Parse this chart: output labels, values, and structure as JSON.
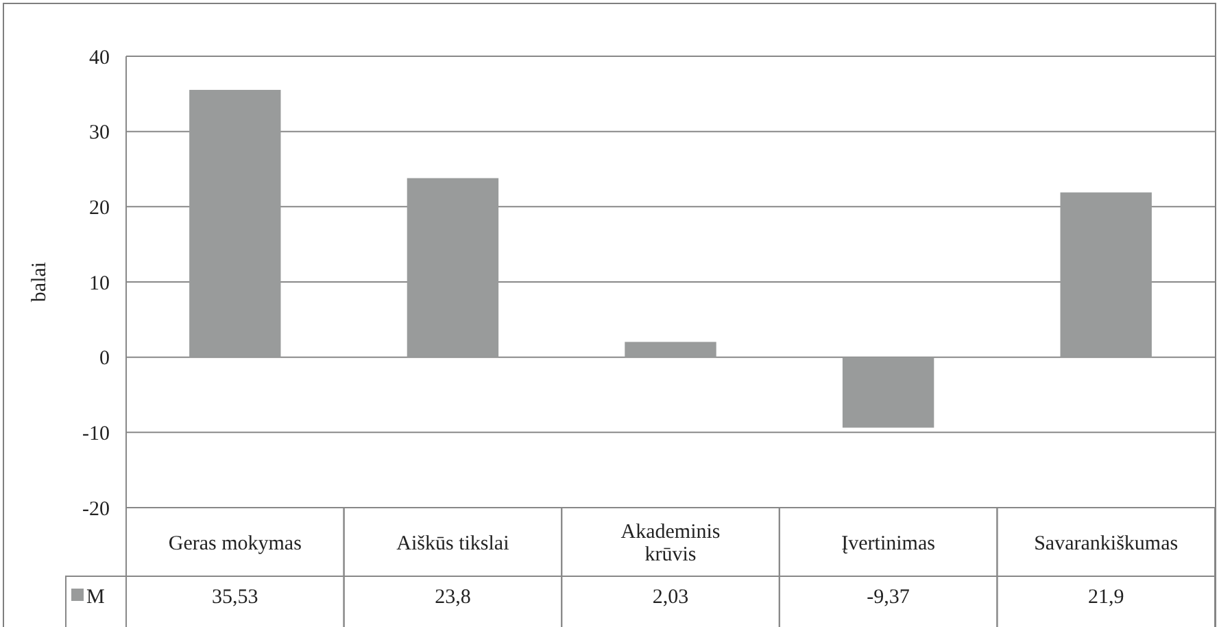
{
  "chart_data": {
    "type": "bar",
    "ylabel": "balai",
    "categories": [
      "Geras mokymas",
      "Aiškūs tikslai",
      "Akademinis krūvis",
      "Įvertinimas",
      "Savarankiškumas"
    ],
    "series": [
      {
        "name": "M",
        "color": "#999b9b",
        "values": [
          35.53,
          23.8,
          2.03,
          -9.37,
          21.9
        ],
        "value_labels": [
          "35,53",
          "23,8",
          "2,03",
          "-9,37",
          "21,9"
        ]
      }
    ],
    "ylim": [
      -20,
      40
    ],
    "yticks": [
      -20,
      -10,
      0,
      10,
      20,
      30,
      40
    ],
    "grid": "y",
    "legend": "bottom left"
  }
}
